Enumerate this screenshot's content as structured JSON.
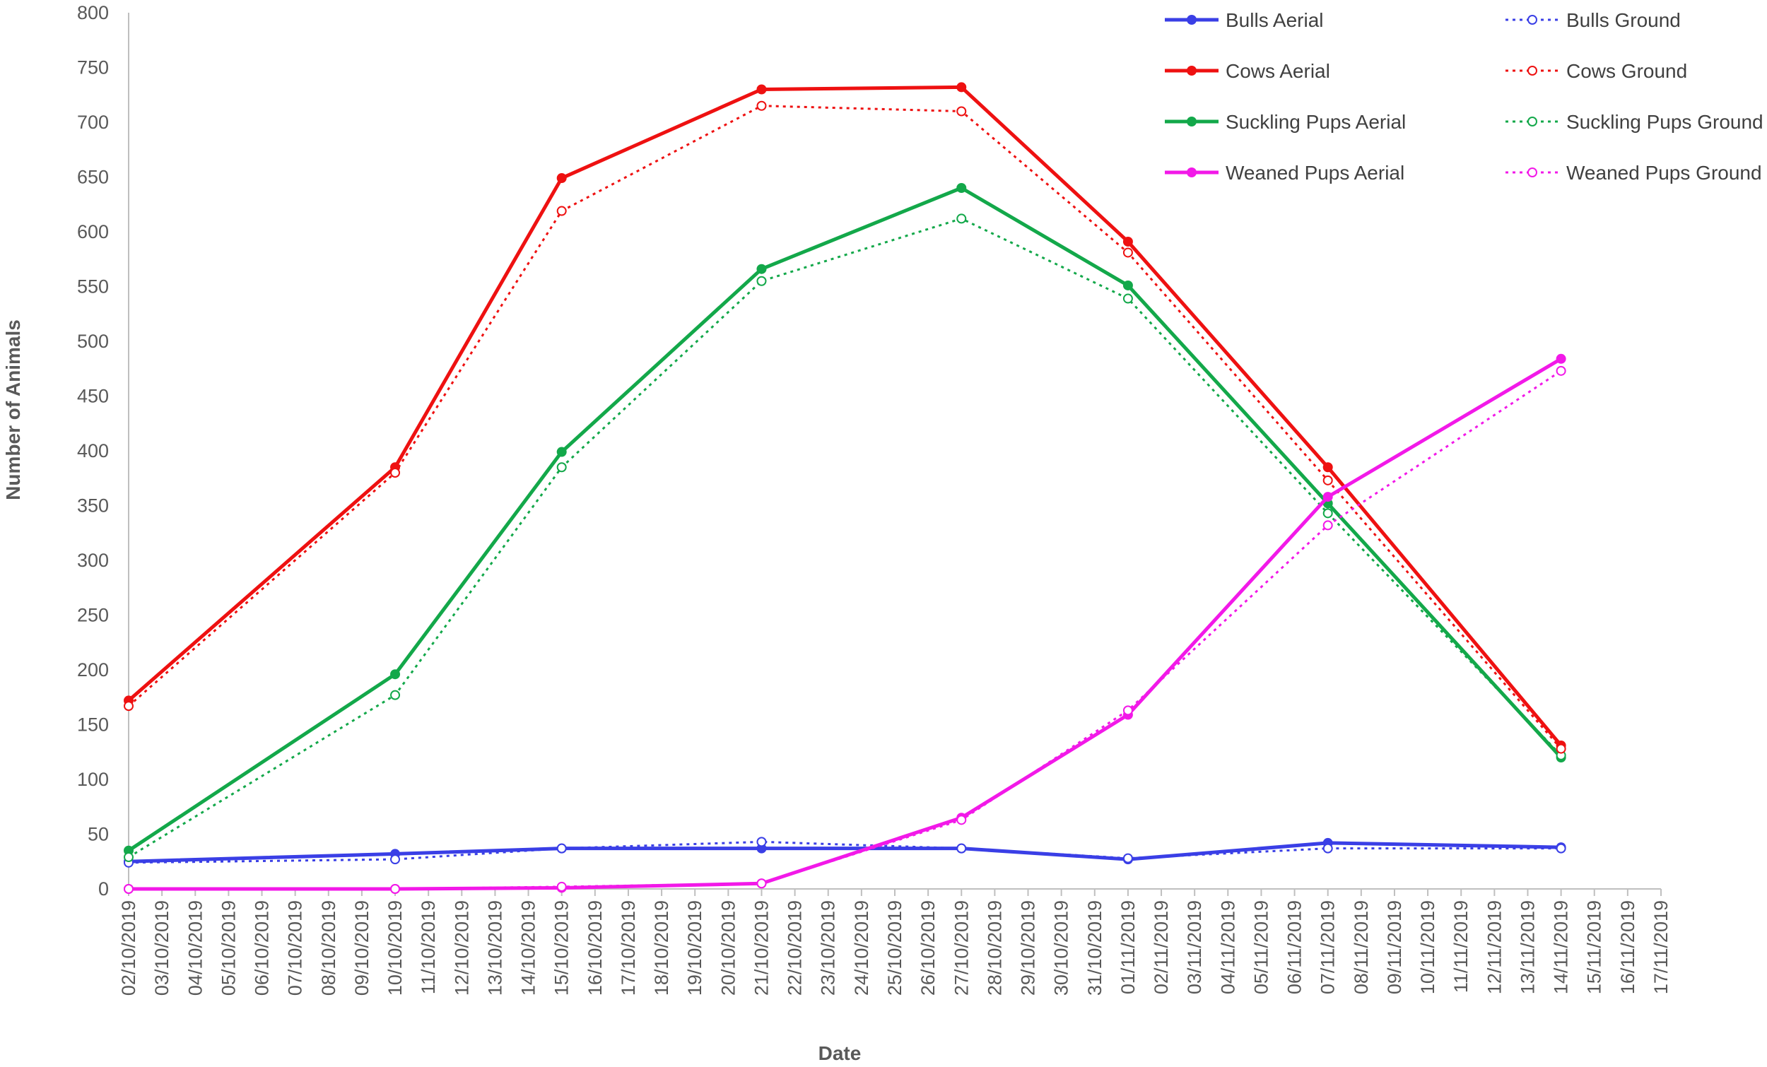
{
  "chart_data": {
    "type": "line",
    "xlabel": "Date",
    "ylabel": "Number of Animals",
    "ylim": [
      0,
      800
    ],
    "yticks": [
      0,
      50,
      100,
      150,
      200,
      250,
      300,
      350,
      400,
      450,
      500,
      550,
      600,
      650,
      700,
      750,
      800
    ],
    "xlim": [
      "02/10/2019",
      "17/11/2019"
    ],
    "x_tick_labels": [
      "02/10/2019",
      "03/10/2019",
      "04/10/2019",
      "05/10/2019",
      "06/10/2019",
      "07/10/2019",
      "08/10/2019",
      "09/10/2019",
      "10/10/2019",
      "11/10/2019",
      "12/10/2019",
      "13/10/2019",
      "14/10/2019",
      "15/10/2019",
      "16/10/2019",
      "17/10/2019",
      "18/10/2019",
      "19/10/2019",
      "20/10/2019",
      "21/10/2019",
      "22/10/2019",
      "23/10/2019",
      "24/10/2019",
      "25/10/2019",
      "26/10/2019",
      "27/10/2019",
      "28/10/2019",
      "29/10/2019",
      "30/10/2019",
      "31/10/2019",
      "01/11/2019",
      "02/11/2019",
      "03/11/2019",
      "04/11/2019",
      "05/11/2019",
      "06/11/2019",
      "07/11/2019",
      "08/11/2019",
      "09/11/2019",
      "10/11/2019",
      "11/11/2019",
      "12/11/2019",
      "13/11/2019",
      "14/11/2019",
      "15/11/2019",
      "16/11/2019",
      "17/11/2019"
    ],
    "x": [
      "02/10/2019",
      "10/10/2019",
      "15/10/2019",
      "21/10/2019",
      "27/10/2019",
      "01/11/2019",
      "07/11/2019",
      "14/11/2019"
    ],
    "grid": false,
    "legend_position": "top-right",
    "series": [
      {
        "name": "Bulls Aerial",
        "color": "#3A3FE6",
        "style": "solid",
        "values": [
          25,
          32,
          37,
          37,
          37,
          27,
          42,
          38
        ]
      },
      {
        "name": "Bulls Ground",
        "color": "#3A3FE6",
        "style": "dotted",
        "values": [
          24,
          27,
          37,
          43,
          37,
          28,
          37,
          37
        ]
      },
      {
        "name": "Cows Aerial",
        "color": "#EE1111",
        "style": "solid",
        "values": [
          172,
          385,
          649,
          730,
          732,
          591,
          385,
          131
        ]
      },
      {
        "name": "Cows Ground",
        "color": "#EE1111",
        "style": "dotted",
        "values": [
          167,
          380,
          619,
          715,
          710,
          581,
          373,
          128
        ]
      },
      {
        "name": "Suckling Pups Aerial",
        "color": "#13A84A",
        "style": "solid",
        "values": [
          35,
          196,
          399,
          566,
          640,
          551,
          352,
          120
        ]
      },
      {
        "name": "Suckling Pups Ground",
        "color": "#13A84A",
        "style": "dotted",
        "values": [
          29,
          177,
          385,
          555,
          612,
          539,
          343,
          122
        ]
      },
      {
        "name": "Weaned Pups Aerial",
        "color": "#F219E8",
        "style": "solid",
        "values": [
          0,
          0,
          1,
          5,
          65,
          159,
          358,
          484
        ]
      },
      {
        "name": "Weaned Pups Ground",
        "color": "#F219E8",
        "style": "dotted",
        "values": [
          0,
          0,
          2,
          5,
          63,
          163,
          332,
          473
        ]
      }
    ]
  }
}
